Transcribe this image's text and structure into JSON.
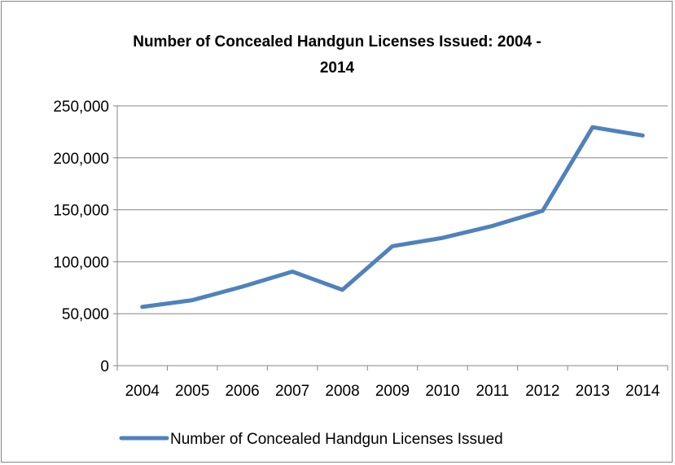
{
  "chart_data": {
    "type": "line",
    "title_lines": [
      "Number of Concealed Handgun Licenses Issued:  2004 -",
      "2014"
    ],
    "x": [
      "2004",
      "2005",
      "2006",
      "2007",
      "2008",
      "2009",
      "2010",
      "2011",
      "2012",
      "2013",
      "2014"
    ],
    "series": [
      {
        "name": "Number of Concealed Handgun Licenses Issued",
        "color": "#4f81bd",
        "values": [
          56500,
          63000,
          76000,
          90500,
          73000,
          115000,
          123000,
          134500,
          149000,
          229500,
          221500
        ]
      }
    ],
    "y_ticks": [
      "0",
      "50,000",
      "100,000",
      "150,000",
      "200,000",
      "250,000"
    ],
    "ylim": [
      0,
      250000
    ],
    "y_step": 50000,
    "grid": true,
    "legend_position": "bottom"
  }
}
